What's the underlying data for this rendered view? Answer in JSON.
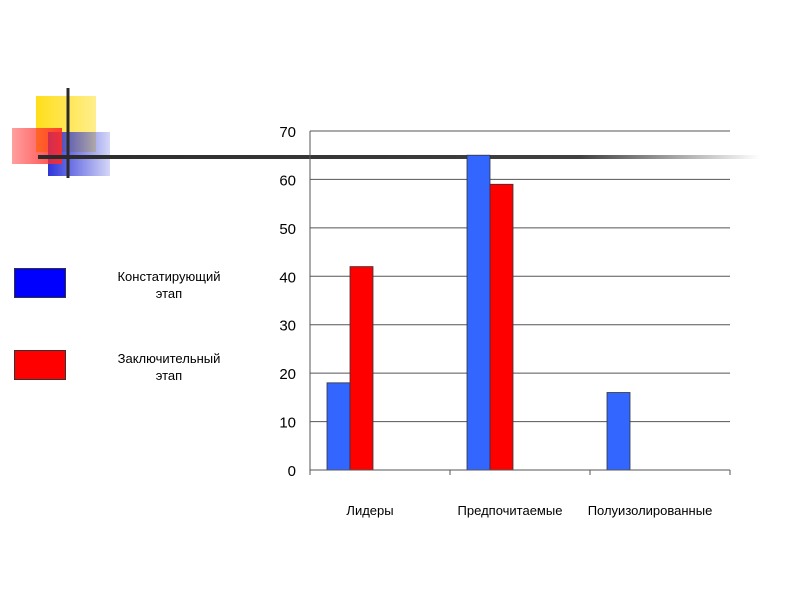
{
  "colors": {
    "series1": "#3366ff",
    "series2": "#ff0000",
    "deco_yellow": "#ffde1a",
    "deco_red": "#ff2a2a",
    "deco_blue": "#2d35d8",
    "deco_line": "#2b2b2b"
  },
  "legend": [
    {
      "label": "Констатирующий\nэтап",
      "color": "#0000ff"
    },
    {
      "label": "Заключительный\nэтап",
      "color": "#ff0000"
    }
  ],
  "chart_data": {
    "type": "bar",
    "categories": [
      "Лидеры",
      "Предпочитаемые",
      "Полуизолированные"
    ],
    "series": [
      {
        "name": "Констатирующий этап",
        "values": [
          18,
          65,
          16
        ]
      },
      {
        "name": "Заключительный этап",
        "values": [
          42,
          59,
          0
        ]
      }
    ],
    "yticks": [
      0,
      10,
      20,
      30,
      40,
      50,
      60,
      70
    ],
    "ylim": [
      0,
      70
    ],
    "grid": true,
    "legend_position": "left"
  }
}
